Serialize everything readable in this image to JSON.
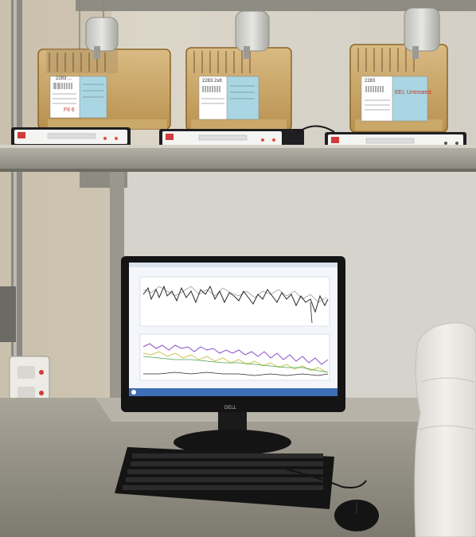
{
  "cages": [
    {
      "tag_top": "2283 ...",
      "marker_note": "Ftl 6"
    },
    {
      "tag_top": "2283 2x8",
      "marker_note": ""
    },
    {
      "tag_top": "2283",
      "marker_note": "EEL Untreated"
    }
  ],
  "monitor": {
    "brand": "DELL",
    "plot_panels": 2,
    "trace_colors": [
      "#2a2a2a",
      "#8a4fc6",
      "#c9c24a",
      "#4aa24a"
    ]
  },
  "colors": {
    "wall": "#d8d2c4",
    "shelf_steel": "#9c9a92",
    "screen_bg": "#f4f6fb",
    "taskbar": "#3d6fb6",
    "cage_amber": "#c79a4d"
  }
}
